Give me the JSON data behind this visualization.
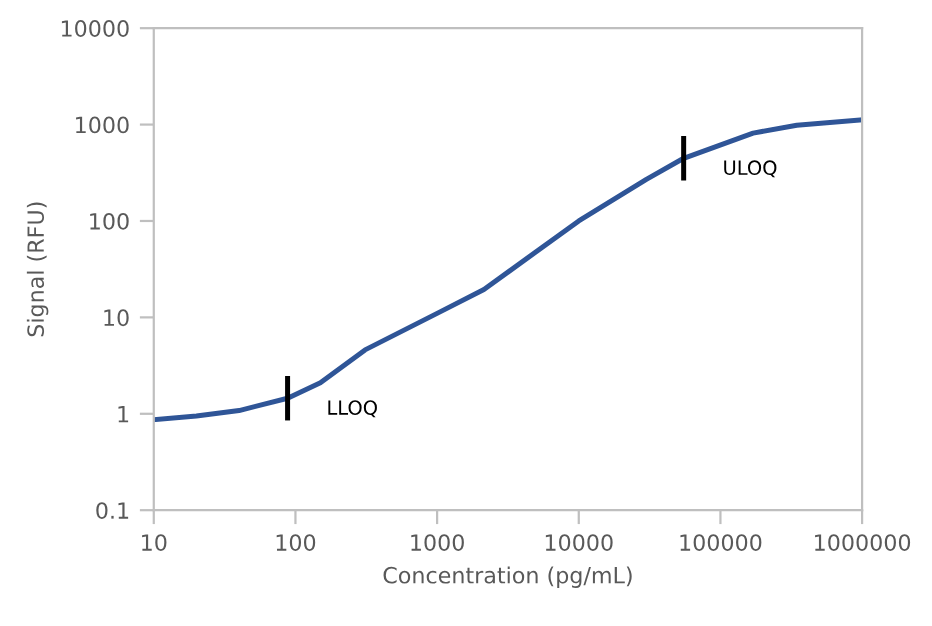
{
  "chart_data": {
    "type": "line",
    "xlabel": "Concentration (pg/mL)",
    "ylabel": "Signal (RFU)",
    "log": "xy",
    "x": [
      10,
      20,
      40,
      88,
      150,
      310,
      1000,
      2140,
      10000,
      30000,
      55000,
      170000,
      346000,
      1000000
    ],
    "series": [
      {
        "color": "#2f5597",
        "values": [
          0.87,
          0.95,
          1.08,
          1.45,
          2.1,
          4.6,
          11,
          19.5,
          100,
          270,
          447,
          815,
          985,
          1120
        ]
      }
    ],
    "xlim": [
      10,
      1000000
    ],
    "xticks": [
      10,
      100,
      1000,
      10000,
      100000,
      1000000
    ],
    "ylim": [
      0.1,
      10000
    ],
    "yticks": [
      0.1,
      1,
      10,
      100,
      1000,
      10000
    ],
    "grid": false,
    "marker": "none",
    "line_style": "solid",
    "annotations": [
      {
        "text": "LLOQ",
        "x": 88,
        "y": 1.45
      },
      {
        "text": "ULOQ",
        "x": 55000,
        "y": 447
      }
    ]
  }
}
